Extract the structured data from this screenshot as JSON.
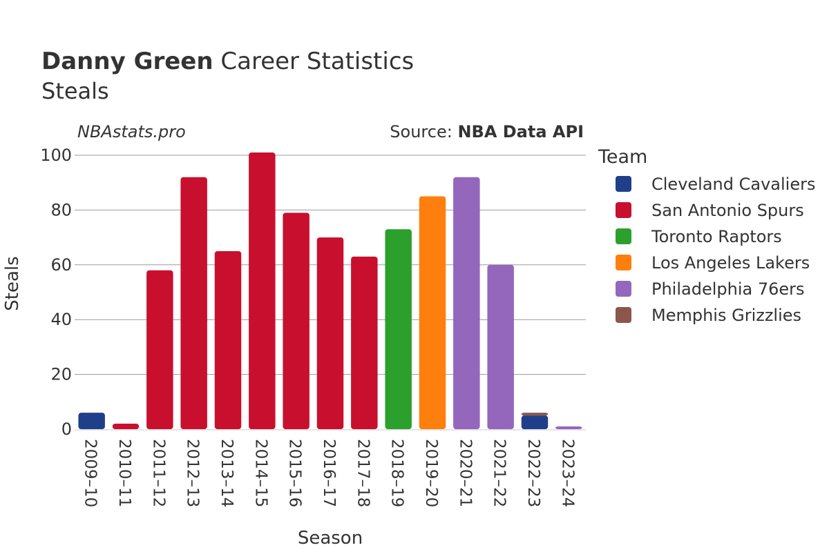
{
  "header": {
    "title_bold": "Danny Green",
    "title_rest": " Career Statistics",
    "subtitle": "Steals",
    "watermark": "NBAstats.pro",
    "source_prefix": "Source: ",
    "source_name": "NBA Data API"
  },
  "legend": {
    "title": "Team",
    "items": [
      {
        "name": "Cleveland Cavaliers",
        "color": "#1f3f8b"
      },
      {
        "name": "San Antonio Spurs",
        "color": "#c8102e"
      },
      {
        "name": "Toronto Raptors",
        "color": "#2ca02c"
      },
      {
        "name": "Los Angeles Lakers",
        "color": "#ff7f0e"
      },
      {
        "name": "Philadelphia 76ers",
        "color": "#9467bd"
      },
      {
        "name": "Memphis Grizzlies",
        "color": "#8c564b"
      }
    ]
  },
  "chart_data": {
    "type": "bar",
    "stacked": true,
    "xlabel": "Season",
    "ylabel": "Steals",
    "ylim": [
      0,
      105
    ],
    "yticks": [
      0,
      20,
      40,
      60,
      80,
      100
    ],
    "grid": true,
    "legend_position": "right",
    "categories": [
      "2009–10",
      "2010–11",
      "2011–12",
      "2012–13",
      "2013–14",
      "2014–15",
      "2015–16",
      "2016–17",
      "2017–18",
      "2018–19",
      "2019–20",
      "2020–21",
      "2021–22",
      "2022–23",
      "2023–24"
    ],
    "bars": [
      {
        "season": "2009–10",
        "segments": [
          {
            "team": "Cleveland Cavaliers",
            "value": 6
          }
        ]
      },
      {
        "season": "2010–11",
        "segments": [
          {
            "team": "San Antonio Spurs",
            "value": 2
          }
        ]
      },
      {
        "season": "2011–12",
        "segments": [
          {
            "team": "San Antonio Spurs",
            "value": 58
          }
        ]
      },
      {
        "season": "2012–13",
        "segments": [
          {
            "team": "San Antonio Spurs",
            "value": 92
          }
        ]
      },
      {
        "season": "2013–14",
        "segments": [
          {
            "team": "San Antonio Spurs",
            "value": 65
          }
        ]
      },
      {
        "season": "2014–15",
        "segments": [
          {
            "team": "San Antonio Spurs",
            "value": 101
          }
        ]
      },
      {
        "season": "2015–16",
        "segments": [
          {
            "team": "San Antonio Spurs",
            "value": 79
          }
        ]
      },
      {
        "season": "2016–17",
        "segments": [
          {
            "team": "San Antonio Spurs",
            "value": 70
          }
        ]
      },
      {
        "season": "2017–18",
        "segments": [
          {
            "team": "San Antonio Spurs",
            "value": 63
          }
        ]
      },
      {
        "season": "2018–19",
        "segments": [
          {
            "team": "Toronto Raptors",
            "value": 73
          }
        ]
      },
      {
        "season": "2019–20",
        "segments": [
          {
            "team": "Los Angeles Lakers",
            "value": 85
          }
        ]
      },
      {
        "season": "2020–21",
        "segments": [
          {
            "team": "Philadelphia 76ers",
            "value": 92
          }
        ]
      },
      {
        "season": "2021–22",
        "segments": [
          {
            "team": "Philadelphia 76ers",
            "value": 60
          }
        ]
      },
      {
        "season": "2022–23",
        "segments": [
          {
            "team": "Cleveland Cavaliers",
            "value": 5
          },
          {
            "team": "Memphis Grizzlies",
            "value": 1
          }
        ]
      },
      {
        "season": "2023–24",
        "segments": [
          {
            "team": "Philadelphia 76ers",
            "value": 1
          }
        ]
      }
    ]
  }
}
